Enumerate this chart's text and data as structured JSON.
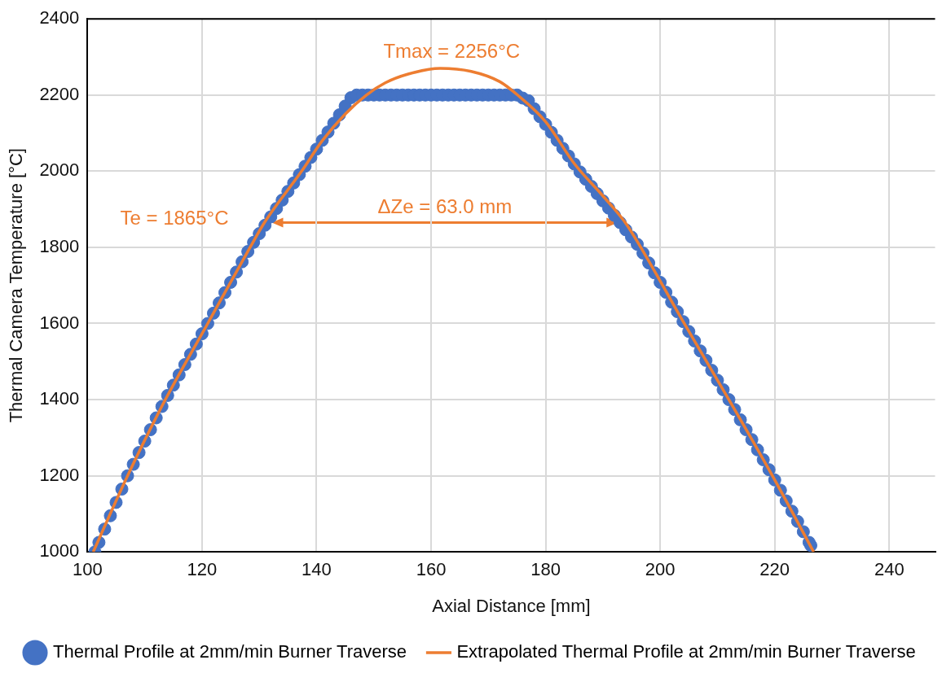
{
  "chart_data": {
    "type": "scatter",
    "xlabel": "Axial Distance [mm]",
    "ylabel": "Thermal Camera Temperature [°C]",
    "xlim": [
      100,
      248
    ],
    "ylim": [
      1000,
      2400
    ],
    "xticks": [
      100,
      120,
      140,
      160,
      180,
      200,
      220,
      240
    ],
    "yticks": [
      1000,
      1200,
      1400,
      1600,
      1800,
      2000,
      2200,
      2400
    ],
    "grid": true,
    "legend": "bottom",
    "series": [
      {
        "name": "Thermal Profile at 2mm/min Burner Traverse",
        "marker": "circle",
        "color": "#4472c4",
        "x": [
          101.3,
          102,
          103,
          104,
          105,
          106,
          107,
          108,
          109,
          110,
          111,
          112,
          113,
          114,
          115,
          116,
          117,
          118,
          119,
          120,
          121,
          122,
          123,
          124,
          125,
          126,
          127,
          128,
          129,
          130,
          131,
          132,
          133,
          134,
          135,
          136,
          137,
          138,
          139,
          140,
          141,
          142,
          143,
          144,
          145,
          146,
          147,
          148,
          149,
          150,
          151,
          152,
          153,
          154,
          155,
          156,
          157,
          158,
          159,
          160,
          161,
          162,
          163,
          164,
          165,
          166,
          167,
          168,
          169,
          170,
          171,
          172,
          173,
          174,
          175,
          176,
          177,
          178,
          179,
          180,
          181,
          182,
          183,
          184,
          185,
          186,
          187,
          188,
          189,
          190,
          191,
          192,
          193,
          194,
          195,
          196,
          197,
          198,
          199,
          200,
          201,
          202,
          203,
          204,
          205,
          206,
          207,
          208,
          209,
          210,
          211,
          212,
          213,
          214,
          215,
          216,
          217,
          218,
          219,
          220,
          221,
          222,
          223,
          224,
          225,
          226,
          226.3
        ],
        "values": [
          1000,
          1025,
          1060,
          1095,
          1130,
          1165,
          1200,
          1230,
          1261,
          1291,
          1321,
          1352,
          1382,
          1411,
          1438,
          1465,
          1492,
          1519,
          1546,
          1573,
          1600,
          1627,
          1654,
          1681,
          1708,
          1735,
          1762,
          1789,
          1813,
          1836,
          1858,
          1880,
          1902,
          1924,
          1947,
          1969,
          1991,
          2013,
          2036,
          2058,
          2081,
          2103,
          2126,
          2148,
          2171,
          2193,
          2200,
          2200,
          2200,
          2200,
          2200,
          2200,
          2200,
          2200,
          2200,
          2200,
          2200,
          2200,
          2200,
          2200,
          2200,
          2200,
          2200,
          2200,
          2200,
          2200,
          2200,
          2200,
          2200,
          2200,
          2200,
          2200,
          2200,
          2200,
          2200,
          2192,
          2185,
          2164,
          2143,
          2123,
          2102,
          2081,
          2060,
          2040,
          2019,
          1998,
          1979,
          1960,
          1941,
          1922,
          1903,
          1884,
          1865,
          1846,
          1827,
          1808,
          1785,
          1759,
          1733,
          1708,
          1682,
          1656,
          1631,
          1605,
          1579,
          1554,
          1528,
          1503,
          1477,
          1451,
          1426,
          1400,
          1374,
          1347,
          1321,
          1295,
          1268,
          1242,
          1216,
          1189,
          1162,
          1134,
          1107,
          1080,
          1053,
          1025,
          1017
        ]
      },
      {
        "name": "Extrapolated Thermal Profile at 2mm/min Burner Traverse",
        "type": "line",
        "marker": "none",
        "color": "#ed7d31",
        "x": [
          101.0,
          107,
          113.6,
          121,
          128.4,
          130.9,
          137.4,
          141,
          145,
          148.7,
          152,
          156,
          161.6,
          167,
          172,
          175.1,
          180,
          185,
          190,
          193.9,
          197,
          204.2,
          212,
          219.6,
          226.8
        ],
        "values": [
          1000,
          1200,
          1400,
          1600,
          1800,
          1865,
          2000,
          2080,
          2150,
          2200,
          2232,
          2255,
          2270,
          2262,
          2235,
          2200,
          2130,
          2020,
          1935,
          1865,
          1790,
          1600,
          1400,
          1200,
          1000
        ]
      }
    ],
    "annotations": [
      {
        "text": "Tmax = 2256°C",
        "x": 161.6,
        "y": 2270
      },
      {
        "text": "Te = 1865°C",
        "x": 130.9,
        "y": 1865
      },
      "ΔZe = 63.0 mm"
    ]
  }
}
